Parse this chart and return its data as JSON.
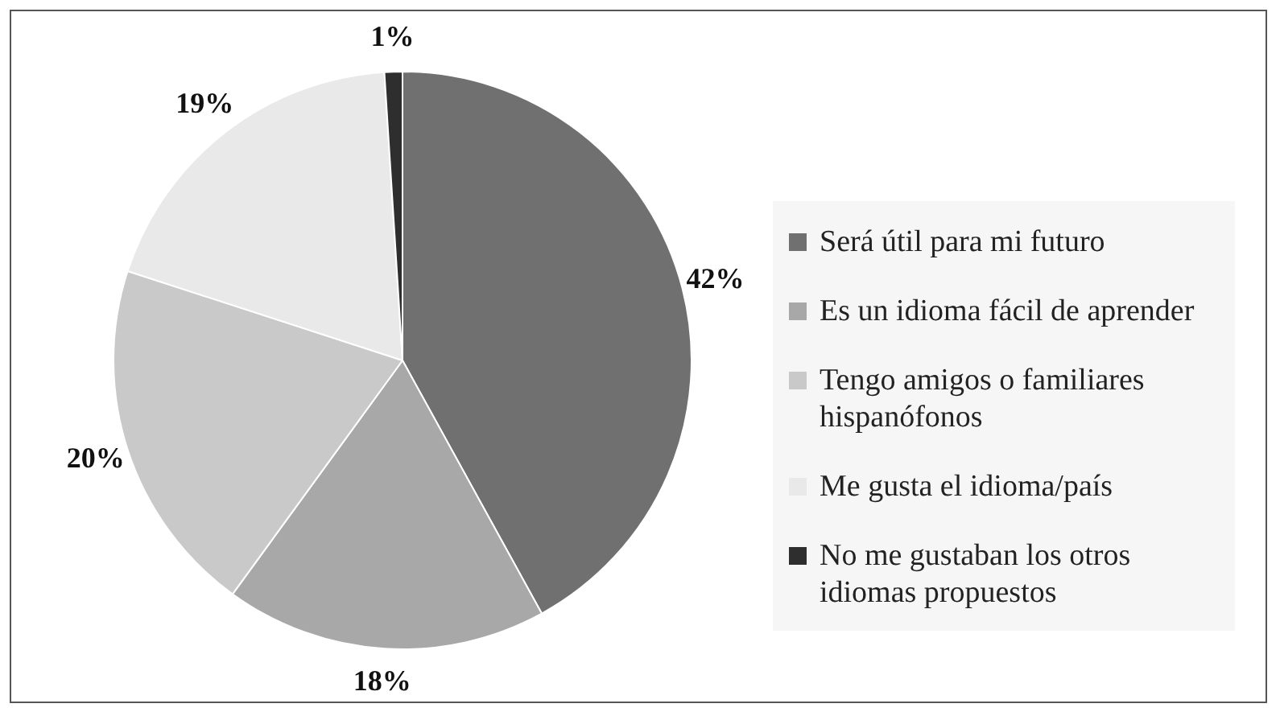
{
  "chart_data": {
    "type": "pie",
    "categories": [
      "Será útil para mi futuro",
      "Es un idioma fácil de aprender",
      "Tengo amigos o familiares hispanófonos",
      "Me gusta el idioma/país",
      "No me gustaban los otros idiomas propuestos"
    ],
    "values": [
      42,
      18,
      20,
      19,
      1
    ],
    "colors": [
      "#707070",
      "#a8a8a8",
      "#c9c9c9",
      "#e9e9e9",
      "#2e2e2e"
    ],
    "value_labels": [
      "42%",
      "18%",
      "20%",
      "19%",
      "1%"
    ],
    "legend": "right"
  }
}
